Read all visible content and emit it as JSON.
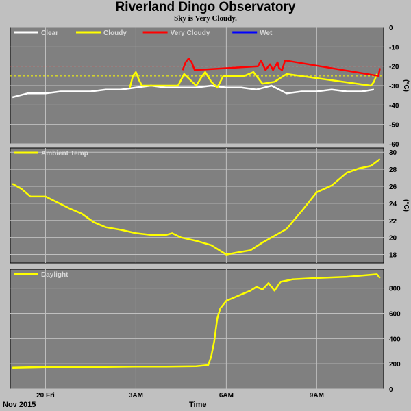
{
  "title": "Riverland Dingo Observatory",
  "subtitle": "Sky is Very Cloudy.",
  "footer": {
    "date": "Nov 2015",
    "xlabel": "Time"
  },
  "x_ticks": [
    {
      "label": "20 Fri",
      "hour": 0
    },
    {
      "label": "3AM",
      "hour": 3
    },
    {
      "label": "6AM",
      "hour": 6
    },
    {
      "label": "9AM",
      "hour": 9
    }
  ],
  "colors": {
    "background": "#c0c0c0",
    "plot": "#808080",
    "grid": "#c0c0c0",
    "clear": "#ffffff",
    "cloudy": "#ffff00",
    "very_cloudy": "#ff0000",
    "wet": "#0000ff",
    "temp": "#ffff00",
    "daylight": "#ffff00"
  },
  "chart_data": [
    {
      "type": "line",
      "ylabel": "(°C)",
      "ylim": [
        -60,
        0
      ],
      "yticks": [
        "0",
        "-10",
        "-20",
        "-30",
        "-40",
        "-50",
        "-60"
      ],
      "thresholds": [
        -20,
        -25
      ],
      "legend": [
        {
          "name": "Clear",
          "color": "#ffffff"
        },
        {
          "name": "Cloudy",
          "color": "#ffff00"
        },
        {
          "name": "Very Cloudy",
          "color": "#ff0000"
        },
        {
          "name": "Wet",
          "color": "#0000ff"
        }
      ],
      "series": [
        {
          "name": "Clear",
          "x": [
            -1.1,
            -0.6,
            0,
            0.5,
            1,
            1.5,
            2,
            2.5,
            3,
            3.5,
            4,
            4.4,
            5,
            5.5,
            6,
            6.5,
            7,
            7.5,
            8,
            8.5,
            9,
            9.5,
            10,
            10.5,
            10.9
          ],
          "values": [
            -36,
            -34,
            -34,
            -33,
            -33,
            -33,
            -32,
            -32,
            -31,
            -30,
            -31,
            -31,
            -31,
            -30,
            -31,
            -31,
            -32,
            -30,
            -34,
            -33,
            -33,
            -32,
            -33,
            -33,
            -32
          ]
        },
        {
          "name": "Cloudy",
          "x": [
            2.8,
            2.9,
            3.0,
            3.1,
            3.2,
            4.4,
            4.6,
            5.0,
            5.2,
            5.3,
            5.5,
            5.7,
            5.9,
            6.6,
            6.9,
            7.2,
            7.6,
            8.0,
            10.8,
            10.9,
            11.0
          ],
          "values": [
            -31,
            -25,
            -23,
            -27,
            -30,
            -30,
            -24,
            -30,
            -25,
            -23,
            -28,
            -31,
            -25,
            -25,
            -23,
            -29,
            -28,
            -24,
            -30,
            -28,
            -24
          ]
        },
        {
          "name": "Very Cloudy",
          "x": [
            4.55,
            4.65,
            4.75,
            4.85,
            4.95,
            7.05,
            7.15,
            7.3,
            7.45,
            7.55,
            7.7,
            7.75,
            7.85,
            7.95,
            11.05,
            11.1
          ],
          "values": [
            -22,
            -18,
            -16,
            -18,
            -22,
            -20,
            -17,
            -22,
            -19,
            -22,
            -18,
            -21,
            -22,
            -17,
            -25,
            -21
          ]
        }
      ]
    },
    {
      "type": "line",
      "ylabel": "(°C)",
      "ylim": [
        17,
        30.5
      ],
      "yticks": [
        "30",
        "28",
        "26",
        "24",
        "22",
        "20",
        "18"
      ],
      "legend": [
        {
          "name": "Ambient Temp",
          "color": "#ffff00"
        }
      ],
      "series": [
        {
          "name": "Ambient Temp",
          "x": [
            -1.1,
            -0.8,
            -0.5,
            0,
            0.4,
            0.8,
            1.2,
            1.6,
            2,
            2.5,
            3,
            3.5,
            4,
            4.2,
            4.5,
            5,
            5.5,
            6,
            6.3,
            6.8,
            7.2,
            7.6,
            8,
            8.5,
            9,
            9.5,
            10,
            10.4,
            10.8,
            11.1
          ],
          "values": [
            26.3,
            25.7,
            24.8,
            24.8,
            24.1,
            23.4,
            22.8,
            21.8,
            21.2,
            20.9,
            20.5,
            20.3,
            20.3,
            20.5,
            20.0,
            19.6,
            19.1,
            18.0,
            18.2,
            18.5,
            19.4,
            20.2,
            21.0,
            23.1,
            25.3,
            26.1,
            27.6,
            28.1,
            28.4,
            29.2
          ]
        }
      ]
    },
    {
      "type": "line",
      "ylabel": "",
      "ylim": [
        0,
        950
      ],
      "yticks": [
        "800",
        "600",
        "400",
        "200",
        "0"
      ],
      "legend": [
        {
          "name": "Daylight",
          "color": "#ffff00"
        }
      ],
      "series": [
        {
          "name": "Daylight",
          "x": [
            -1.1,
            0,
            1,
            2,
            3,
            4,
            5,
            5.4,
            5.5,
            5.6,
            5.7,
            5.8,
            6.0,
            6.2,
            6.5,
            6.8,
            7.0,
            7.2,
            7.4,
            7.6,
            7.8,
            8.0,
            8.2,
            9,
            10,
            11,
            11.1
          ],
          "values": [
            170,
            175,
            175,
            175,
            178,
            178,
            180,
            190,
            260,
            380,
            560,
            640,
            700,
            720,
            750,
            780,
            810,
            790,
            840,
            780,
            850,
            860,
            870,
            880,
            890,
            910,
            880
          ]
        }
      ]
    }
  ]
}
